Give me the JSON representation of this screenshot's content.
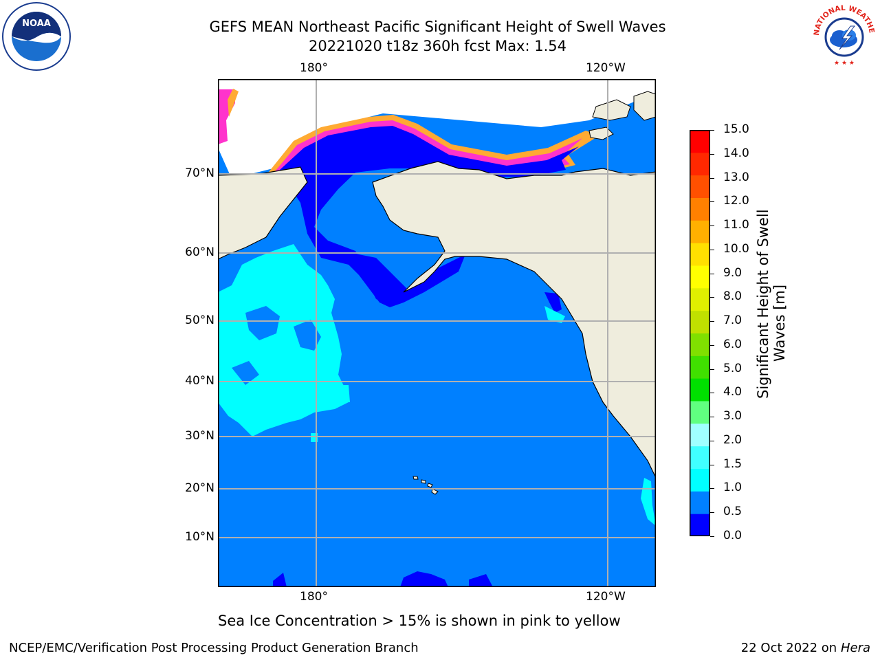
{
  "title": {
    "line1": "GEFS MEAN Northeast Pacific Significant Height of Swell Waves",
    "line2": "20221020 t18z 360h fcst   Max: 1.54"
  },
  "logos": {
    "left": {
      "icon": "noaa-logo-icon",
      "text": "NOAA"
    },
    "right": {
      "icon": "nws-logo-icon",
      "text": "NATIONAL WEATHER SERVICE"
    }
  },
  "map": {
    "lon_labels_top": [
      "180°",
      "120°W"
    ],
    "lon_labels_bottom": [
      "180°",
      "120°W"
    ],
    "lat_labels": [
      "70°N",
      "60°N",
      "50°N",
      "40°N",
      "30°N",
      "20°N",
      "10°N"
    ],
    "colors": {
      "ocean_main": "#0080ff",
      "ocean_low": "#0000ff",
      "ocean_mid": "#00ffff",
      "land": "#efeddd",
      "ice_pink": "#ff33cc",
      "ice_orange": "#ffaa33",
      "ice_yellow": "#ffe066",
      "grid": "#b0b0b0"
    }
  },
  "colorbar": {
    "title_line1": "Significant Height of Swell",
    "title_line2": "Waves [m]",
    "ticks": [
      "15.0",
      "14.0",
      "13.0",
      "12.0",
      "11.0",
      "10.0",
      "9.0",
      "8.0",
      "7.0",
      "6.0",
      "5.0",
      "4.0",
      "3.0",
      "2.0",
      "1.5",
      "1.0",
      "0.5",
      "0.0"
    ],
    "colors": [
      "#0000ff",
      "#0080ff",
      "#00ffff",
      "#40ffff",
      "#a0ffff",
      "#60ff80",
      "#00e000",
      "#40e000",
      "#80e000",
      "#c0e000",
      "#e0f000",
      "#ffff00",
      "#ffe000",
      "#ffb000",
      "#ff8000",
      "#ff5000",
      "#ff2800",
      "#ff0000"
    ]
  },
  "caption": "Sea Ice Concentration > 15% is shown in pink to yellow",
  "footer": {
    "left": "NCEP/EMC/Verification Post Processing Product Generation Branch",
    "date": "22 Oct 2022 on ",
    "host": "Hera"
  }
}
